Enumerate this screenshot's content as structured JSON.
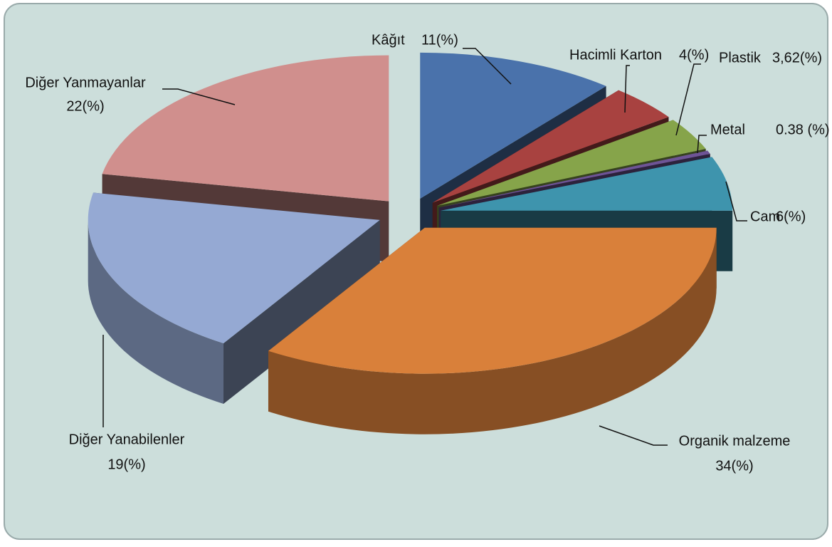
{
  "chart_data": {
    "type": "pie",
    "categories": [
      "Kâğıt",
      "Hacimli Karton",
      "Plastik",
      "Metal",
      "Cam",
      "Organik malzeme",
      "Diğer Yanabilenler",
      "Diğer Yanmayanlar"
    ],
    "values": [
      11,
      4,
      3.62,
      0.38,
      6,
      34,
      19,
      22
    ],
    "value_labels": [
      "11(%)",
      "4(%)",
      "3,62(%)",
      "0.38 (%)",
      "6(%)",
      "34(%)",
      "19(%)",
      "22(%)"
    ],
    "colors": [
      "#4a72ab",
      "#a84240",
      "#86a44a",
      "#6e5496",
      "#3e94ad",
      "#d9803a",
      "#95a9d3",
      "#d08f8d"
    ]
  }
}
